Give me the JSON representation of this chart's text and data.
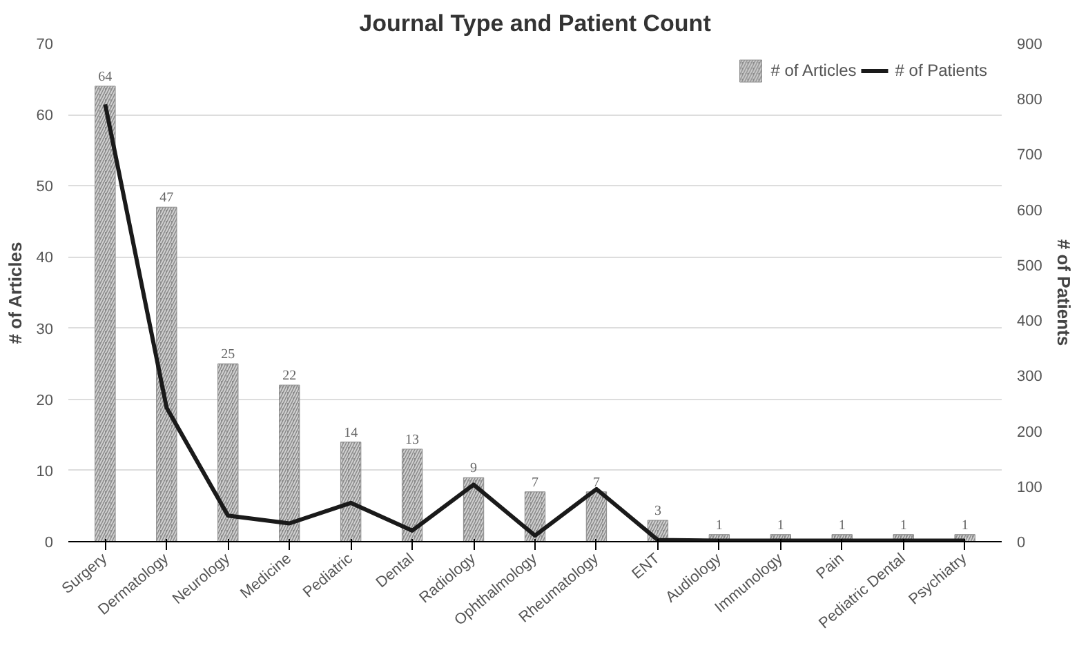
{
  "chart_data": {
    "type": "bar",
    "title": "Journal Type and Patient Count",
    "ylabel": "# of Articles",
    "y2label": "# of Patients",
    "categories": [
      "Surgery",
      "Dermatology",
      "Neurology",
      "Medicine",
      "Pediatric",
      "Dental",
      "Radiology",
      "Ophthalmology",
      "Rheumatology",
      "ENT",
      "Audiology",
      "Immunology",
      "Pain",
      "Pediatric Dental",
      "Psychiatry"
    ],
    "series": [
      {
        "name": "# of Articles",
        "color": "#8c8c8c",
        "values": [
          64,
          47,
          25,
          22,
          14,
          13,
          9,
          7,
          7,
          3,
          1,
          1,
          1,
          1,
          1
        ],
        "value_labels": [
          "64",
          "47",
          "25",
          "22",
          "14",
          "13",
          "9",
          "7",
          "7",
          "3",
          "1",
          "1",
          "1",
          "1",
          "1"
        ]
      },
      {
        "name": "# of Patients",
        "type": "line",
        "axis": "y2",
        "color": "#1a1a1a",
        "values": [
          790,
          242,
          47,
          33,
          70,
          20,
          103,
          11,
          95,
          3,
          2,
          2,
          2,
          2,
          2
        ]
      }
    ],
    "ylim": [
      0,
      70
    ],
    "yticks": [
      0,
      10,
      20,
      30,
      40,
      50,
      60,
      70
    ],
    "y2lim": [
      0,
      900
    ],
    "y2ticks": [
      0,
      100,
      200,
      300,
      400,
      500,
      600,
      700,
      800,
      900
    ],
    "grid": "y",
    "legend": "top right",
    "line_style": "solid",
    "marker": "none"
  }
}
